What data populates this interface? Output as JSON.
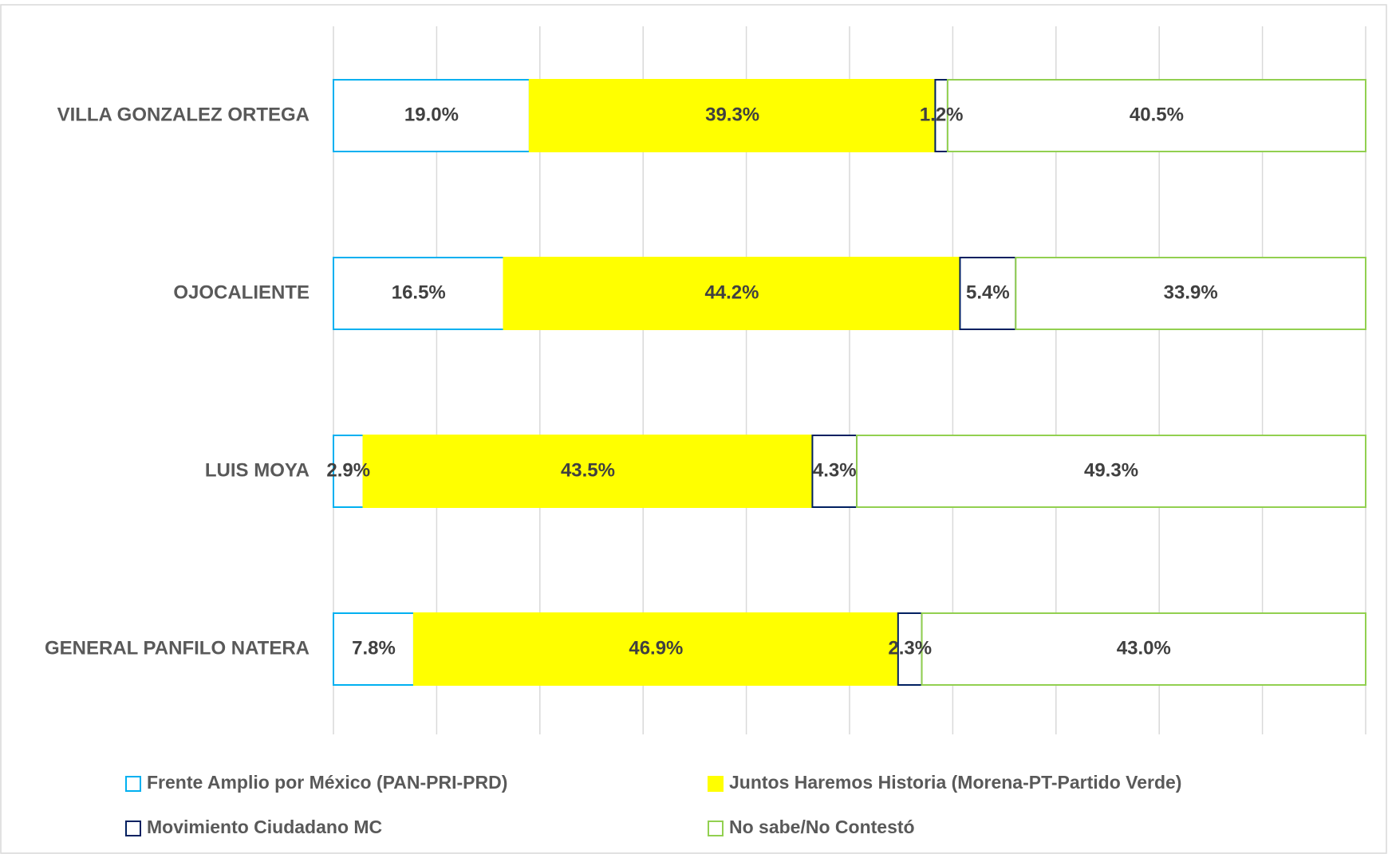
{
  "chart_data": {
    "type": "stacked_barh",
    "categories": [
      "VILLA GONZALEZ ORTEGA",
      "OJOCALIENTE",
      "LUIS MOYA",
      "GENERAL PANFILO NATERA"
    ],
    "series": [
      {
        "name": "Frente Amplio por México (PAN-PRI-PRD)",
        "color": "#00b0f0",
        "fill": "#ffffff",
        "values": [
          19.0,
          16.5,
          2.9,
          7.8
        ],
        "value_labels": [
          "19.0%",
          "16.5%",
          "2.9%",
          "7.8%"
        ]
      },
      {
        "name": "Juntos Haremos Historia (Morena-PT-Partido Verde)",
        "color": "#ffff00",
        "fill": "#ffff00",
        "values": [
          39.3,
          44.2,
          43.5,
          46.9
        ],
        "value_labels": [
          "39.3%",
          "44.2%",
          "43.5%",
          "46.9%"
        ]
      },
      {
        "name": "Movimiento Ciudadano MC",
        "color": "#002060",
        "fill": "#ffffff",
        "values": [
          1.2,
          5.4,
          4.3,
          2.3
        ],
        "value_labels": [
          "1.2%",
          "5.4%",
          "4.3%",
          "2.3%"
        ]
      },
      {
        "name": "No sabe/No Contestó",
        "color": "#92d050",
        "fill": "#ffffff",
        "values": [
          40.5,
          33.9,
          49.3,
          43.0
        ],
        "value_labels": [
          "40.5%",
          "33.9%",
          "49.3%",
          "43.0%"
        ]
      }
    ],
    "xlim": [
      0,
      100
    ],
    "xticks": [
      0,
      10,
      20,
      30,
      40,
      50,
      60,
      70,
      80,
      90,
      100
    ],
    "grid": true,
    "legend": "bottom"
  }
}
